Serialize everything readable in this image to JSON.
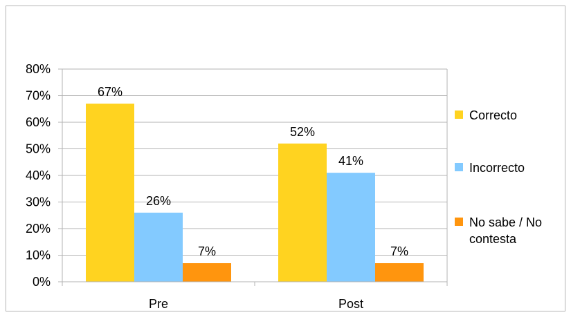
{
  "chart_data": {
    "type": "bar",
    "categories": [
      "Pre",
      "Post"
    ],
    "series": [
      {
        "name": "Correcto",
        "color": "#FFD320",
        "values": [
          67,
          52
        ],
        "labels": [
          "67%",
          "52%"
        ]
      },
      {
        "name": "Incorrecto",
        "color": "#83CAFF",
        "values": [
          26,
          41
        ],
        "labels": [
          "26%",
          "41%"
        ]
      },
      {
        "name": "No sabe / No contesta",
        "color": "#FF950E",
        "values": [
          7,
          7
        ],
        "labels": [
          "7%",
          "7%"
        ]
      }
    ],
    "legend_lines": [
      [
        "Correcto"
      ],
      [
        "Incorrecto"
      ],
      [
        "No sabe / No",
        "contesta"
      ]
    ],
    "yticks": [
      "0%",
      "10%",
      "20%",
      "30%",
      "40%",
      "50%",
      "60%",
      "70%",
      "80%"
    ],
    "ylim": [
      0,
      80
    ],
    "grid": true,
    "legend_position": "right"
  }
}
